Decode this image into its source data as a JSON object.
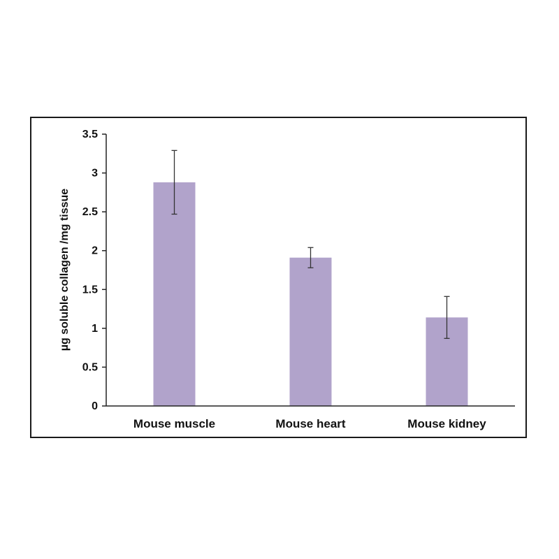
{
  "chart_data": {
    "type": "bar",
    "title": "",
    "xlabel": "",
    "ylabel": "µg soluble collagen /mg tissue",
    "categories": [
      "Mouse muscle",
      "Mouse heart",
      "Mouse kidney"
    ],
    "values": [
      2.88,
      1.91,
      1.14
    ],
    "error": [
      0.41,
      0.13,
      0.27
    ],
    "ylim": [
      0,
      3.5
    ],
    "yticks": [
      "0",
      "0.5",
      "1",
      "1.5",
      "2",
      "2.5",
      "3",
      "3.5"
    ],
    "bar_color": "#b1a3cb",
    "error_color": "#333333",
    "grid": false,
    "legend": "none"
  }
}
